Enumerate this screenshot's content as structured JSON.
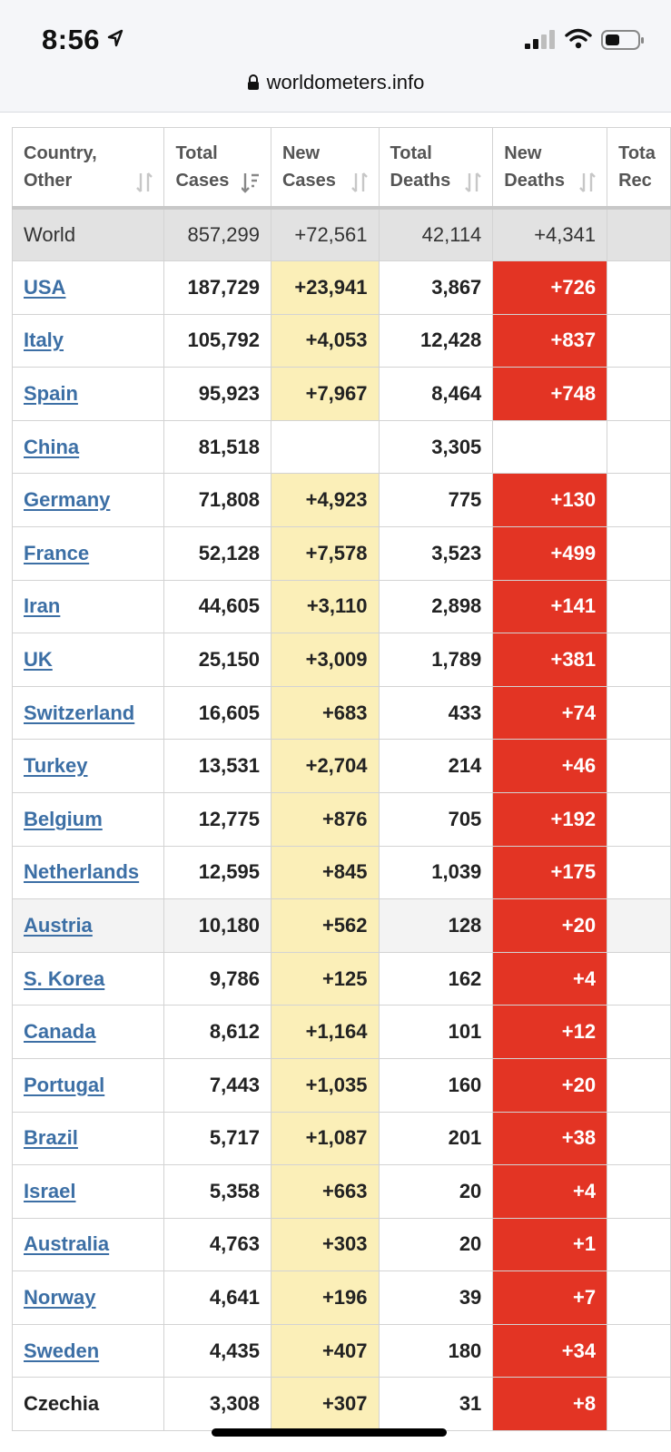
{
  "status_bar": {
    "time": "8:56",
    "icons": [
      "location-arrow-icon",
      "signal-icon",
      "wifi-icon",
      "battery-icon"
    ]
  },
  "browser": {
    "url": "worldometers.info",
    "lock_icon": "lock-icon"
  },
  "table": {
    "headers": [
      {
        "line1": "Country,",
        "line2": "Other"
      },
      {
        "line1": "Total",
        "line2": "Cases"
      },
      {
        "line1": "New",
        "line2": "Cases"
      },
      {
        "line1": "Total",
        "line2": "Deaths"
      },
      {
        "line1": "New",
        "line2": "Deaths"
      },
      {
        "line1": "Tota",
        "line2": "Rec"
      }
    ],
    "world": {
      "name": "World",
      "total_cases": "857,299",
      "new_cases": "+72,561",
      "total_deaths": "42,114",
      "new_deaths": "+4,341"
    },
    "rows": [
      {
        "name": "USA",
        "total_cases": "187,729",
        "new_cases": "+23,941",
        "total_deaths": "3,867",
        "new_deaths": "+726"
      },
      {
        "name": "Italy",
        "total_cases": "105,792",
        "new_cases": "+4,053",
        "total_deaths": "12,428",
        "new_deaths": "+837"
      },
      {
        "name": "Spain",
        "total_cases": "95,923",
        "new_cases": "+7,967",
        "total_deaths": "8,464",
        "new_deaths": "+748"
      },
      {
        "name": "China",
        "total_cases": "81,518",
        "new_cases": "",
        "total_deaths": "3,305",
        "new_deaths": ""
      },
      {
        "name": "Germany",
        "total_cases": "71,808",
        "new_cases": "+4,923",
        "total_deaths": "775",
        "new_deaths": "+130"
      },
      {
        "name": "France",
        "total_cases": "52,128",
        "new_cases": "+7,578",
        "total_deaths": "3,523",
        "new_deaths": "+499"
      },
      {
        "name": "Iran",
        "total_cases": "44,605",
        "new_cases": "+3,110",
        "total_deaths": "2,898",
        "new_deaths": "+141"
      },
      {
        "name": "UK",
        "total_cases": "25,150",
        "new_cases": "+3,009",
        "total_deaths": "1,789",
        "new_deaths": "+381"
      },
      {
        "name": "Switzerland",
        "total_cases": "16,605",
        "new_cases": "+683",
        "total_deaths": "433",
        "new_deaths": "+74"
      },
      {
        "name": "Turkey",
        "total_cases": "13,531",
        "new_cases": "+2,704",
        "total_deaths": "214",
        "new_deaths": "+46"
      },
      {
        "name": "Belgium",
        "total_cases": "12,775",
        "new_cases": "+876",
        "total_deaths": "705",
        "new_deaths": "+192"
      },
      {
        "name": "Netherlands",
        "total_cases": "12,595",
        "new_cases": "+845",
        "total_deaths": "1,039",
        "new_deaths": "+175"
      },
      {
        "name": "Austria",
        "total_cases": "10,180",
        "new_cases": "+562",
        "total_deaths": "128",
        "new_deaths": "+20"
      },
      {
        "name": "S. Korea",
        "total_cases": "9,786",
        "new_cases": "+125",
        "total_deaths": "162",
        "new_deaths": "+4"
      },
      {
        "name": "Canada",
        "total_cases": "8,612",
        "new_cases": "+1,164",
        "total_deaths": "101",
        "new_deaths": "+12"
      },
      {
        "name": "Portugal",
        "total_cases": "7,443",
        "new_cases": "+1,035",
        "total_deaths": "160",
        "new_deaths": "+20"
      },
      {
        "name": "Brazil",
        "total_cases": "5,717",
        "new_cases": "+1,087",
        "total_deaths": "201",
        "new_deaths": "+38"
      },
      {
        "name": "Israel",
        "total_cases": "5,358",
        "new_cases": "+663",
        "total_deaths": "20",
        "new_deaths": "+4"
      },
      {
        "name": "Australia",
        "total_cases": "4,763",
        "new_cases": "+303",
        "total_deaths": "20",
        "new_deaths": "+1"
      },
      {
        "name": "Norway",
        "total_cases": "4,641",
        "new_cases": "+196",
        "total_deaths": "39",
        "new_deaths": "+7"
      },
      {
        "name": "Sweden",
        "total_cases": "4,435",
        "new_cases": "+407",
        "total_deaths": "180",
        "new_deaths": "+34"
      },
      {
        "name": "Czechia",
        "total_cases": "3,308",
        "new_cases": "+307",
        "total_deaths": "31",
        "new_deaths": "+8"
      }
    ]
  },
  "colors": {
    "new_cases_fill": "#fbefb8",
    "new_deaths_fill": "#e33424",
    "link": "#3c6fa5",
    "world_row": "#e2e2e2"
  }
}
